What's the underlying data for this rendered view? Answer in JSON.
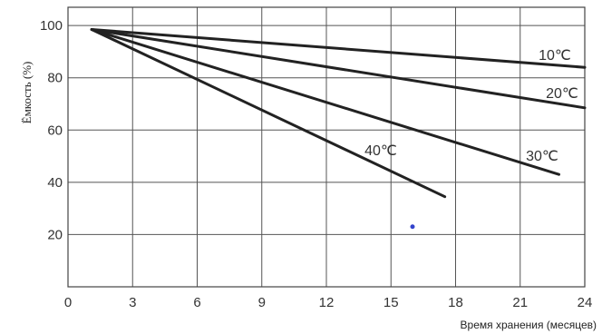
{
  "chart_data": {
    "type": "line",
    "xlabel": "Время хранения (месяцев)",
    "ylabel": "Ёмкость (%)",
    "xlim": [
      0,
      24
    ],
    "ylim": [
      0,
      107
    ],
    "xticks": [
      "0",
      "3",
      "6",
      "9",
      "12",
      "15",
      "18",
      "21",
      "24"
    ],
    "yticks": [
      "20",
      "40",
      "60",
      "80",
      "100"
    ],
    "grid": true,
    "series": [
      {
        "name": "10℃",
        "x": [
          1.1,
          24
        ],
        "y": [
          98.5,
          84
        ]
      },
      {
        "name": "20℃",
        "x": [
          1.1,
          24
        ],
        "y": [
          98.5,
          68.5
        ]
      },
      {
        "name": "30℃",
        "x": [
          1.1,
          22.8
        ],
        "y": [
          98.5,
          43
        ]
      },
      {
        "name": "40℃",
        "x": [
          1.1,
          17.5
        ],
        "y": [
          98.5,
          34.5
        ]
      }
    ],
    "annotations": [
      {
        "type": "point",
        "x": 16,
        "y": 23,
        "color": "#3344cc"
      }
    ]
  }
}
